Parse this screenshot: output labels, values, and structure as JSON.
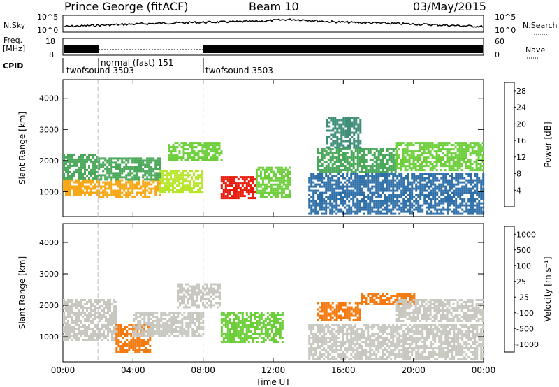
{
  "header": {
    "station": "Prince George (fitACF)",
    "beam": "Beam 10",
    "date": "03/May/2015"
  },
  "strip_labels": {
    "nsky": "N.Sky",
    "nsky_ticks": [
      "10^5",
      "10^0"
    ],
    "nsearch": "N.Search",
    "freq": "Freq.",
    "freq_unit": "[MHz]",
    "freq_ticks": [
      "18",
      "8"
    ],
    "nave": "Nave",
    "nave_ticks": [
      "60",
      "0"
    ],
    "cpid": "CPID"
  },
  "cpid_segments": [
    {
      "label": "twofsound 3503",
      "start_hour": 0.0
    },
    {
      "label": "normal (fast) 151",
      "start_hour": 2.0
    },
    {
      "label": "twofsound 3503",
      "start_hour": 8.0
    }
  ],
  "chart_data": [
    {
      "type": "heatmap",
      "name": "power",
      "ylabel": "Slant Range [km]",
      "xlabel": "Time UT",
      "x_ticks": [
        "00:00",
        "04:00",
        "08:00",
        "12:00",
        "16:00",
        "20:00",
        "00:00"
      ],
      "xlim_hours": [
        0,
        24
      ],
      "y_ticks": [
        1000,
        2000,
        3000,
        4000
      ],
      "ylim": [
        200,
        4600
      ],
      "colorbar_label": "Power [dB]",
      "colorbar_ticks": [
        4,
        8,
        12,
        16,
        20,
        24,
        28
      ],
      "colorbar_range": [
        0,
        30
      ],
      "colors": [
        "#0000ff",
        "#1c39c8",
        "#2e6fa8",
        "#3f8f78",
        "#4aa85a",
        "#6ccf3a",
        "#b8e62c",
        "#f0d820",
        "#f7a818",
        "#f47a10",
        "#ee4a0c",
        "#e81808"
      ],
      "regions": [
        {
          "t0": 0.0,
          "t1": 2.0,
          "r0": 900,
          "r1": 1400,
          "v": 22
        },
        {
          "t0": 0.0,
          "t1": 2.0,
          "r0": 1400,
          "r1": 2200,
          "v": 10
        },
        {
          "t0": 2.0,
          "t1": 5.5,
          "r0": 800,
          "r1": 1400,
          "v": 20
        },
        {
          "t0": 2.0,
          "t1": 5.5,
          "r0": 1400,
          "r1": 2100,
          "v": 11
        },
        {
          "t0": 5.5,
          "t1": 8.0,
          "r0": 1000,
          "r1": 1700,
          "v": 17
        },
        {
          "t0": 6.0,
          "t1": 9.0,
          "r0": 2000,
          "r1": 2600,
          "v": 13
        },
        {
          "t0": 9.0,
          "t1": 11.0,
          "r0": 800,
          "r1": 1500,
          "v": 28
        },
        {
          "t0": 11.0,
          "t1": 13.0,
          "r0": 800,
          "r1": 1800,
          "v": 14
        },
        {
          "t0": 14.5,
          "t1": 19.0,
          "r0": 1600,
          "r1": 2400,
          "v": 12
        },
        {
          "t0": 15.0,
          "t1": 17.0,
          "r0": 2400,
          "r1": 3400,
          "v": 9
        },
        {
          "t0": 19.0,
          "t1": 24.0,
          "r0": 1700,
          "r1": 2600,
          "v": 13
        },
        {
          "t0": 14.0,
          "t1": 24.0,
          "r0": 300,
          "r1": 1600,
          "v": 5
        }
      ]
    },
    {
      "type": "heatmap",
      "name": "velocity",
      "ylabel": "Slant Range [km]",
      "xlabel": "Time UT",
      "x_ticks": [
        "00:00",
        "04:00",
        "08:00",
        "12:00",
        "16:00",
        "20:00",
        "00:00"
      ],
      "xlim_hours": [
        0,
        24
      ],
      "y_ticks": [
        1000,
        2000,
        3000,
        4000
      ],
      "ylim": [
        200,
        4600
      ],
      "colorbar_label": "Velocity [m s⁻¹]",
      "colorbar_ticks": [
        1000,
        500,
        100,
        25,
        -25,
        -100,
        -500,
        -1000
      ],
      "colors": [
        "#e81808",
        "#f47a10",
        "#f7a818",
        "#c8c8c0",
        "#c8c8c0",
        "#6ccf3a",
        "#3f8f78",
        "#1c39c8"
      ],
      "regions": [
        {
          "t0": 0.0,
          "t1": 3.0,
          "r0": 900,
          "r1": 2200,
          "v": 0
        },
        {
          "t0": 3.0,
          "t1": 5.0,
          "r0": 500,
          "r1": 1400,
          "v": -300
        },
        {
          "t0": 4.0,
          "t1": 8.0,
          "r0": 1000,
          "r1": 1800,
          "v": 50
        },
        {
          "t0": 6.5,
          "t1": 9.0,
          "r0": 1900,
          "r1": 2700,
          "v": 0
        },
        {
          "t0": 9.0,
          "t1": 12.5,
          "r0": 800,
          "r1": 1800,
          "v": 150
        },
        {
          "t0": 14.5,
          "t1": 17.0,
          "r0": 1500,
          "r1": 2100,
          "v": -300
        },
        {
          "t0": 17.0,
          "t1": 20.0,
          "r0": 2000,
          "r1": 2400,
          "v": -200
        },
        {
          "t0": 19.0,
          "t1": 24.0,
          "r0": 1500,
          "r1": 2200,
          "v": 0
        },
        {
          "t0": 14.0,
          "t1": 24.0,
          "r0": 300,
          "r1": 1400,
          "v": 0
        }
      ]
    }
  ]
}
